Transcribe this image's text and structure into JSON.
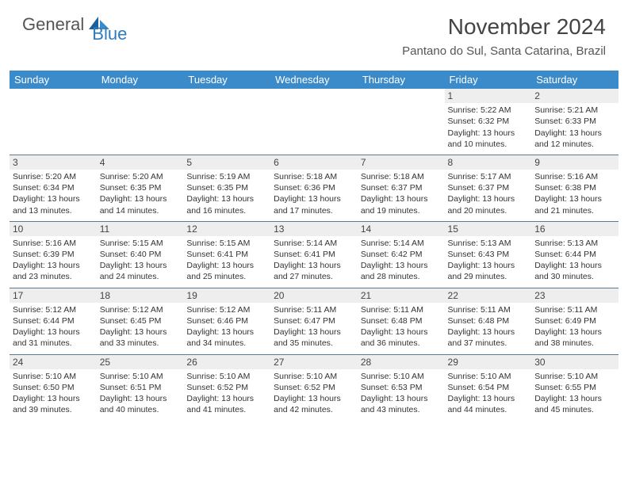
{
  "brand": {
    "general": "General",
    "blue": "Blue"
  },
  "title": "November 2024",
  "location": "Pantano do Sul, Santa Catarina, Brazil",
  "colors": {
    "header_bg": "#3b8bca",
    "header_text": "#ffffff",
    "daynum_bg": "#eeeeee",
    "row_divider": "#5a7a94",
    "page_bg": "#ffffff",
    "text": "#333333",
    "logo_gray": "#555555",
    "logo_blue": "#2f7bbf"
  },
  "typography": {
    "title_fontsize": 28,
    "location_fontsize": 15,
    "dayheader_fontsize": 13,
    "cell_fontsize": 10.5,
    "daynum_fontsize": 12
  },
  "day_headers": [
    "Sunday",
    "Monday",
    "Tuesday",
    "Wednesday",
    "Thursday",
    "Friday",
    "Saturday"
  ],
  "weeks": [
    [
      {
        "n": "",
        "sr": "",
        "ss": "",
        "dl": ""
      },
      {
        "n": "",
        "sr": "",
        "ss": "",
        "dl": ""
      },
      {
        "n": "",
        "sr": "",
        "ss": "",
        "dl": ""
      },
      {
        "n": "",
        "sr": "",
        "ss": "",
        "dl": ""
      },
      {
        "n": "",
        "sr": "",
        "ss": "",
        "dl": ""
      },
      {
        "n": "1",
        "sr": "Sunrise: 5:22 AM",
        "ss": "Sunset: 6:32 PM",
        "dl": "Daylight: 13 hours and 10 minutes."
      },
      {
        "n": "2",
        "sr": "Sunrise: 5:21 AM",
        "ss": "Sunset: 6:33 PM",
        "dl": "Daylight: 13 hours and 12 minutes."
      }
    ],
    [
      {
        "n": "3",
        "sr": "Sunrise: 5:20 AM",
        "ss": "Sunset: 6:34 PM",
        "dl": "Daylight: 13 hours and 13 minutes."
      },
      {
        "n": "4",
        "sr": "Sunrise: 5:20 AM",
        "ss": "Sunset: 6:35 PM",
        "dl": "Daylight: 13 hours and 14 minutes."
      },
      {
        "n": "5",
        "sr": "Sunrise: 5:19 AM",
        "ss": "Sunset: 6:35 PM",
        "dl": "Daylight: 13 hours and 16 minutes."
      },
      {
        "n": "6",
        "sr": "Sunrise: 5:18 AM",
        "ss": "Sunset: 6:36 PM",
        "dl": "Daylight: 13 hours and 17 minutes."
      },
      {
        "n": "7",
        "sr": "Sunrise: 5:18 AM",
        "ss": "Sunset: 6:37 PM",
        "dl": "Daylight: 13 hours and 19 minutes."
      },
      {
        "n": "8",
        "sr": "Sunrise: 5:17 AM",
        "ss": "Sunset: 6:37 PM",
        "dl": "Daylight: 13 hours and 20 minutes."
      },
      {
        "n": "9",
        "sr": "Sunrise: 5:16 AM",
        "ss": "Sunset: 6:38 PM",
        "dl": "Daylight: 13 hours and 21 minutes."
      }
    ],
    [
      {
        "n": "10",
        "sr": "Sunrise: 5:16 AM",
        "ss": "Sunset: 6:39 PM",
        "dl": "Daylight: 13 hours and 23 minutes."
      },
      {
        "n": "11",
        "sr": "Sunrise: 5:15 AM",
        "ss": "Sunset: 6:40 PM",
        "dl": "Daylight: 13 hours and 24 minutes."
      },
      {
        "n": "12",
        "sr": "Sunrise: 5:15 AM",
        "ss": "Sunset: 6:41 PM",
        "dl": "Daylight: 13 hours and 25 minutes."
      },
      {
        "n": "13",
        "sr": "Sunrise: 5:14 AM",
        "ss": "Sunset: 6:41 PM",
        "dl": "Daylight: 13 hours and 27 minutes."
      },
      {
        "n": "14",
        "sr": "Sunrise: 5:14 AM",
        "ss": "Sunset: 6:42 PM",
        "dl": "Daylight: 13 hours and 28 minutes."
      },
      {
        "n": "15",
        "sr": "Sunrise: 5:13 AM",
        "ss": "Sunset: 6:43 PM",
        "dl": "Daylight: 13 hours and 29 minutes."
      },
      {
        "n": "16",
        "sr": "Sunrise: 5:13 AM",
        "ss": "Sunset: 6:44 PM",
        "dl": "Daylight: 13 hours and 30 minutes."
      }
    ],
    [
      {
        "n": "17",
        "sr": "Sunrise: 5:12 AM",
        "ss": "Sunset: 6:44 PM",
        "dl": "Daylight: 13 hours and 31 minutes."
      },
      {
        "n": "18",
        "sr": "Sunrise: 5:12 AM",
        "ss": "Sunset: 6:45 PM",
        "dl": "Daylight: 13 hours and 33 minutes."
      },
      {
        "n": "19",
        "sr": "Sunrise: 5:12 AM",
        "ss": "Sunset: 6:46 PM",
        "dl": "Daylight: 13 hours and 34 minutes."
      },
      {
        "n": "20",
        "sr": "Sunrise: 5:11 AM",
        "ss": "Sunset: 6:47 PM",
        "dl": "Daylight: 13 hours and 35 minutes."
      },
      {
        "n": "21",
        "sr": "Sunrise: 5:11 AM",
        "ss": "Sunset: 6:48 PM",
        "dl": "Daylight: 13 hours and 36 minutes."
      },
      {
        "n": "22",
        "sr": "Sunrise: 5:11 AM",
        "ss": "Sunset: 6:48 PM",
        "dl": "Daylight: 13 hours and 37 minutes."
      },
      {
        "n": "23",
        "sr": "Sunrise: 5:11 AM",
        "ss": "Sunset: 6:49 PM",
        "dl": "Daylight: 13 hours and 38 minutes."
      }
    ],
    [
      {
        "n": "24",
        "sr": "Sunrise: 5:10 AM",
        "ss": "Sunset: 6:50 PM",
        "dl": "Daylight: 13 hours and 39 minutes."
      },
      {
        "n": "25",
        "sr": "Sunrise: 5:10 AM",
        "ss": "Sunset: 6:51 PM",
        "dl": "Daylight: 13 hours and 40 minutes."
      },
      {
        "n": "26",
        "sr": "Sunrise: 5:10 AM",
        "ss": "Sunset: 6:52 PM",
        "dl": "Daylight: 13 hours and 41 minutes."
      },
      {
        "n": "27",
        "sr": "Sunrise: 5:10 AM",
        "ss": "Sunset: 6:52 PM",
        "dl": "Daylight: 13 hours and 42 minutes."
      },
      {
        "n": "28",
        "sr": "Sunrise: 5:10 AM",
        "ss": "Sunset: 6:53 PM",
        "dl": "Daylight: 13 hours and 43 minutes."
      },
      {
        "n": "29",
        "sr": "Sunrise: 5:10 AM",
        "ss": "Sunset: 6:54 PM",
        "dl": "Daylight: 13 hours and 44 minutes."
      },
      {
        "n": "30",
        "sr": "Sunrise: 5:10 AM",
        "ss": "Sunset: 6:55 PM",
        "dl": "Daylight: 13 hours and 45 minutes."
      }
    ]
  ]
}
